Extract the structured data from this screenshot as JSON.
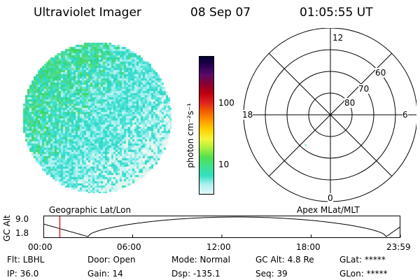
{
  "header": {
    "instrument": "Ultraviolet Imager",
    "date": "08 Sep 07",
    "time": "01:05:55 UT"
  },
  "colorbar": {
    "unit_label": "photon cm⁻²s⁻¹",
    "ticks": [
      "100",
      "10"
    ],
    "colors": [
      "#000033",
      "#2a0050",
      "#5a0a6a",
      "#8a0030",
      "#bb0010",
      "#e02020",
      "#f06000",
      "#ff9900",
      "#ffd200",
      "#f5f53c",
      "#a8f03c",
      "#50e050",
      "#40e090",
      "#30e0c0",
      "#b0f0f0",
      "#e0f8f8"
    ]
  },
  "polar_grid": {
    "lat_labels": [
      "80",
      "70",
      "60"
    ],
    "mlt_labels": {
      "top": "12",
      "left": "18",
      "right": "6",
      "bottom": "0"
    }
  },
  "altitude_plot": {
    "axis_label": "GC Alt",
    "y_ticks": [
      "9.0",
      "1.8"
    ],
    "left_title": "Geographic Lat/Lon",
    "right_title": "Apex MLat/MLT",
    "x_ticks": [
      "00:00",
      "06:00",
      "12:00",
      "18:00",
      "23:59"
    ],
    "current_time_fraction": 0.046
  },
  "status": {
    "flt": "Flt: LBHL",
    "ip": "IP: 36.0",
    "door": "Door: Open",
    "gain": "Gain: 14",
    "mode": "Mode: Normal",
    "dsp": "Dsp: -135.1",
    "gc_alt": "GC Alt: 4.8 Re",
    "seq": "Seq: 39",
    "glat": "GLat: *****",
    "glon": "GLon: *****"
  }
}
